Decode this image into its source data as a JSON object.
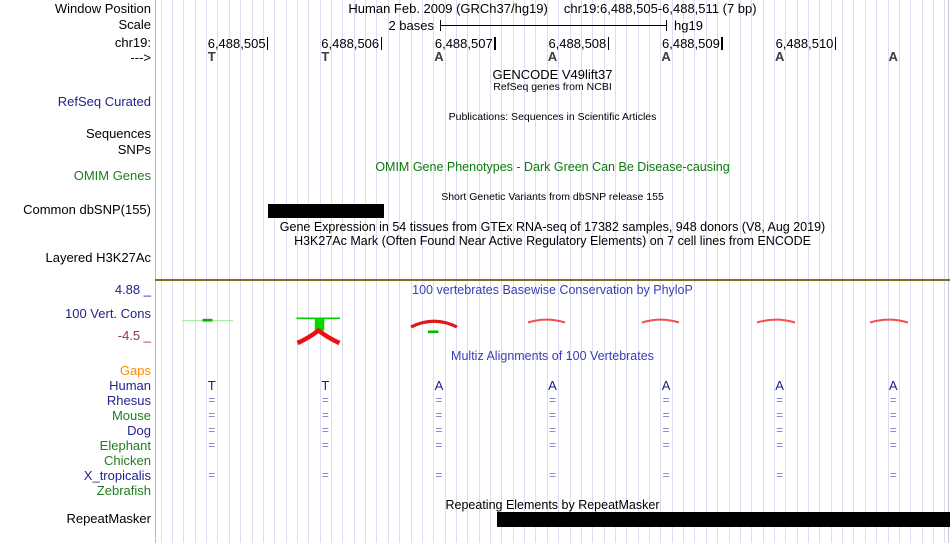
{
  "palette": {
    "navy_label": "#23238e",
    "green_label": "#1e7d1e",
    "orange_label": "#ff8c00",
    "maroon_label": "#8e3939",
    "blue_title": "#3c3cb4",
    "omim_green": "#0b7a0b",
    "gridline": "#dcdcf2",
    "guideline_pink": "#f4a2a2",
    "cons_axis_brown": "#87692c",
    "cons_positive_green": "#00cc00",
    "cons_negative_red": "#ee1010",
    "feature_bar_black": "#000000"
  },
  "header": {
    "window_position_label": "Window Position",
    "scale_label": "Scale",
    "chrom_label": "chr19:",
    "strand_arrow": "--->",
    "assembly_title": "Human Feb. 2009 (GRCh37/hg19)",
    "region_title": "chr19:6,488,505-6,488,511 (7 bp)",
    "scale_value": "2 bases",
    "assembly_tag": "hg19"
  },
  "ruler": {
    "tick_labels": [
      "6,488,505",
      "6,488,506",
      "6,488,507",
      "6,488,508",
      "6,488,509",
      "6,488,510"
    ]
  },
  "sequence": {
    "bases": [
      "T",
      "T",
      "A",
      "A",
      "A",
      "A",
      "A"
    ]
  },
  "tracks": {
    "gencode": {
      "title": "GENCODE V49lift37",
      "subtitle": "RefSeq genes from NCBI",
      "left_label": "RefSeq Curated"
    },
    "publications": {
      "title": "Publications: Sequences in Scientific Articles",
      "left_label_1": "Sequences",
      "left_label_2": "SNPs"
    },
    "omim": {
      "title": "OMIM Gene Phenotypes - Dark Green Can Be Disease-causing",
      "left_label": "OMIM Genes"
    },
    "dbsnp": {
      "title": "Short Genetic Variants from dbSNP release 155",
      "left_label": "Common dbSNP(155)"
    },
    "gtex": {
      "title": "Gene Expression in 54 tissues from GTEx RNA-seq of 17382 samples, 948 donors (V8, Aug 2019)"
    },
    "h3k27ac": {
      "title": "H3K27Ac Mark (Often Found Near Active Regulatory Elements) on 7 cell lines from ENCODE",
      "left_label": "Layered H3K27Ac"
    },
    "phylop": {
      "title": "100 vertebrates Basewise Conservation by PhyloP",
      "left_label": "100 Vert. Cons",
      "scale_max": "4.88 _",
      "scale_min": "-4.5 _"
    },
    "multiz": {
      "title": "Multiz Alignments of 100 Vertebrates"
    },
    "repeatmasker": {
      "title": "Repeating Elements by RepeatMasker",
      "left_label": "RepeatMasker"
    }
  },
  "alignment": {
    "species": [
      {
        "name": "Gaps",
        "color": "orange",
        "symbols": [
          "",
          "",
          "",
          "",
          "",
          "",
          ""
        ]
      },
      {
        "name": "Human",
        "color": "navy",
        "symbols": [
          "T",
          "T",
          "A",
          "A",
          "A",
          "A",
          "A"
        ]
      },
      {
        "name": "Rhesus",
        "color": "navy",
        "symbols": [
          "=",
          "=",
          "=",
          "=",
          "=",
          "=",
          "="
        ]
      },
      {
        "name": "Mouse",
        "color": "green",
        "symbols": [
          "=",
          "=",
          "=",
          "=",
          "=",
          "=",
          "="
        ]
      },
      {
        "name": "Dog",
        "color": "navy",
        "symbols": [
          "=",
          "=",
          "=",
          "=",
          "=",
          "=",
          "="
        ]
      },
      {
        "name": "Elephant",
        "color": "green",
        "symbols": [
          "=",
          "=",
          "=",
          "=",
          "=",
          "=",
          "="
        ]
      },
      {
        "name": "Chicken",
        "color": "green",
        "symbols": [
          "",
          "",
          "",
          "",
          "",
          "",
          ""
        ]
      },
      {
        "name": "X_tropicalis",
        "color": "navy",
        "symbols": [
          "=",
          "=",
          "=",
          "=",
          "=",
          "=",
          "="
        ]
      },
      {
        "name": "Zebrafish",
        "color": "green",
        "symbols": [
          "",
          "",
          "",
          "",
          "",
          "",
          ""
        ]
      }
    ]
  }
}
